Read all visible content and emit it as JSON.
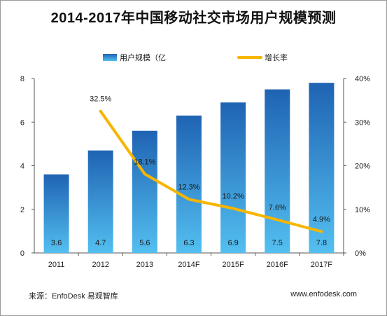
{
  "chart_data": {
    "type": "bar+line",
    "title": "2014-2017年中国移动社交市场用户规模预测",
    "categories": [
      "2011",
      "2012",
      "2013",
      "2014F",
      "2015F",
      "2016F",
      "2017F"
    ],
    "series": [
      {
        "name": "用户规模（亿",
        "type": "bar",
        "axis": "left",
        "values": [
          3.6,
          4.7,
          5.6,
          6.3,
          6.9,
          7.5,
          7.8
        ],
        "labels": [
          "3.6",
          "4.7",
          "5.6",
          "6.3",
          "6.9",
          "7.5",
          "7.8"
        ]
      },
      {
        "name": "增长率",
        "type": "line",
        "axis": "right",
        "values": [
          null,
          32.5,
          18.1,
          12.3,
          10.2,
          7.6,
          4.9
        ],
        "labels": [
          "",
          "32.5%",
          "18.1%",
          "12.3%",
          "10.2%",
          "7.6%",
          "4.9%"
        ]
      }
    ],
    "yleft": {
      "lim": [
        0,
        8
      ],
      "ticks": [
        "0",
        "2",
        "4",
        "6",
        "8"
      ]
    },
    "yright": {
      "lim": [
        0,
        40
      ],
      "ticks": [
        "0%",
        "10%",
        "20%",
        "30%",
        "40%"
      ]
    },
    "legend_position": "top",
    "grid": false,
    "colors": {
      "bar_top": "#1f63b3",
      "bar_bottom": "#53bff0",
      "line": "#f7b500"
    }
  },
  "footer": {
    "source": "来源：EnfoDesk 易观智库",
    "website": "www.enfodesk.com"
  }
}
